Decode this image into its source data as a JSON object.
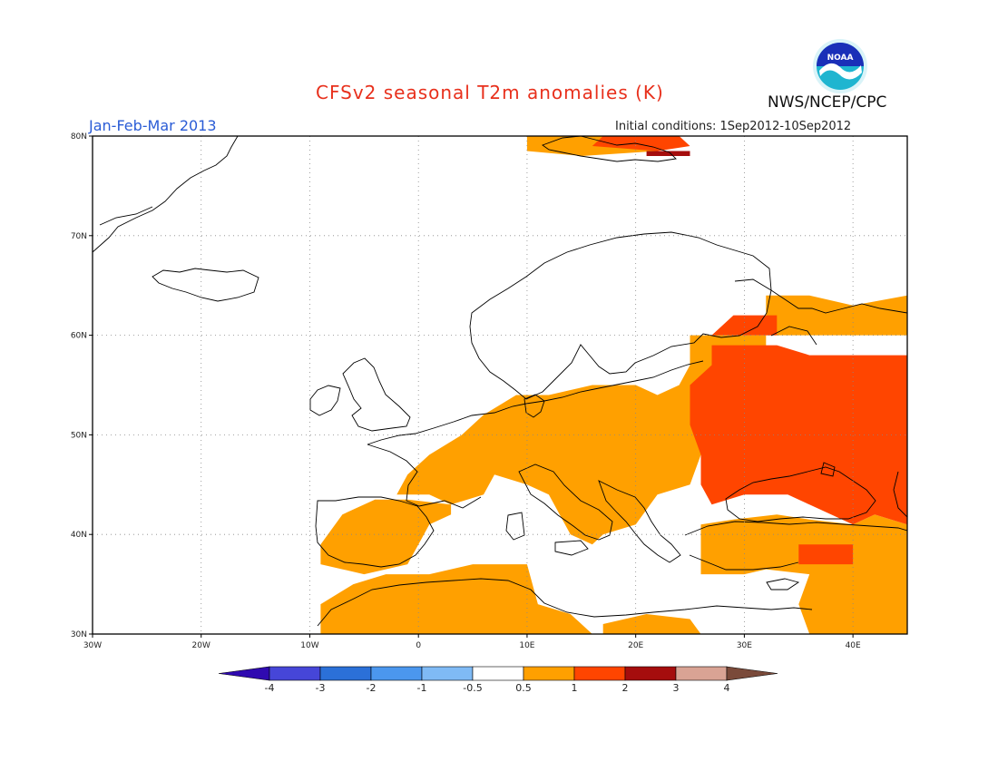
{
  "header": {
    "title": "CFSv2 seasonal T2m anomalies (K)",
    "org": "NWS/NCEP/CPC",
    "period": "Jan-Feb-Mar 2013",
    "initial_conditions": "Initial conditions: 1Sep2012-10Sep2012",
    "logo_text": "NOAA"
  },
  "map": {
    "lon_range": [
      -30,
      45
    ],
    "lat_range": [
      30,
      80
    ],
    "lat_ticks": [
      {
        "value": 80,
        "label": "80N"
      },
      {
        "value": 70,
        "label": "70N"
      },
      {
        "value": 60,
        "label": "60N"
      },
      {
        "value": 50,
        "label": "50N"
      },
      {
        "value": 40,
        "label": "40N"
      },
      {
        "value": 30,
        "label": "30N"
      }
    ],
    "lon_ticks": [
      {
        "value": -30,
        "label": "30W"
      },
      {
        "value": -20,
        "label": "20W"
      },
      {
        "value": -10,
        "label": "10W"
      },
      {
        "value": 0,
        "label": "0"
      },
      {
        "value": 10,
        "label": "10E"
      },
      {
        "value": 20,
        "label": "20E"
      },
      {
        "value": 30,
        "label": "30E"
      },
      {
        "value": 40,
        "label": "40E"
      }
    ],
    "grid": "dotted",
    "anomaly_regions": [
      {
        "level": "0.5-1",
        "name": "southwest-europe-iberia",
        "polygon": [
          [
            -9,
            39
          ],
          [
            -7,
            42
          ],
          [
            -4,
            43.5
          ],
          [
            -1,
            43.5
          ],
          [
            3,
            43
          ],
          [
            3,
            42
          ],
          [
            1,
            41
          ],
          [
            0,
            39
          ],
          [
            -1,
            37
          ],
          [
            -5,
            36
          ],
          [
            -7,
            36.5
          ],
          [
            -9,
            37
          ]
        ]
      },
      {
        "level": "0.5-1",
        "name": "france-central-europe",
        "polygon": [
          [
            -2,
            44
          ],
          [
            -1,
            46
          ],
          [
            1,
            48
          ],
          [
            4,
            50
          ],
          [
            6,
            52
          ],
          [
            9,
            54
          ],
          [
            12,
            54
          ],
          [
            16,
            55
          ],
          [
            20,
            55
          ],
          [
            22,
            54
          ],
          [
            24,
            55
          ],
          [
            25,
            57
          ],
          [
            25,
            60
          ],
          [
            32,
            60
          ],
          [
            32,
            52
          ],
          [
            26,
            48
          ],
          [
            25,
            45
          ],
          [
            22,
            44
          ],
          [
            20,
            41
          ],
          [
            17,
            40
          ],
          [
            16,
            39
          ],
          [
            14,
            40
          ],
          [
            12,
            44
          ],
          [
            10,
            45
          ],
          [
            7,
            46
          ],
          [
            6,
            44
          ],
          [
            3,
            43
          ],
          [
            1,
            44
          ]
        ]
      },
      {
        "level": "0.5-1",
        "name": "north-africa",
        "polygon": [
          [
            -9,
            30
          ],
          [
            -9,
            33
          ],
          [
            -6,
            35
          ],
          [
            -3,
            36
          ],
          [
            1,
            36
          ],
          [
            5,
            37
          ],
          [
            10,
            37
          ],
          [
            11,
            33
          ],
          [
            14,
            32
          ],
          [
            16,
            30
          ]
        ]
      },
      {
        "level": "0.5-1",
        "name": "libya-egypt-coast",
        "polygon": [
          [
            17,
            30
          ],
          [
            17,
            31
          ],
          [
            21,
            32
          ],
          [
            25,
            31.5
          ],
          [
            26,
            30
          ]
        ]
      },
      {
        "level": "0.5-1",
        "name": "turkey-middle-east",
        "polygon": [
          [
            26,
            36
          ],
          [
            26,
            41
          ],
          [
            29,
            41.5
          ],
          [
            33,
            42
          ],
          [
            36,
            41.5
          ],
          [
            40,
            41
          ],
          [
            42,
            42
          ],
          [
            45,
            41
          ],
          [
            45,
            30
          ],
          [
            36,
            30
          ],
          [
            35,
            33
          ],
          [
            36,
            36
          ],
          [
            32,
            36.5
          ],
          [
            30,
            36
          ]
        ]
      },
      {
        "level": "0.5-1",
        "name": "northeast-russia",
        "polygon": [
          [
            32,
            60
          ],
          [
            32,
            64
          ],
          [
            36,
            64
          ],
          [
            40,
            63
          ],
          [
            45,
            64
          ],
          [
            45,
            60
          ]
        ]
      },
      {
        "level": "0.5-1",
        "name": "svalbard-west",
        "polygon": [
          [
            10,
            80
          ],
          [
            10,
            78.5
          ],
          [
            15,
            78
          ],
          [
            22,
            78.5
          ],
          [
            20,
            80
          ]
        ]
      },
      {
        "level": "1-2",
        "name": "western-russia-ukraine",
        "polygon": [
          [
            26,
            45
          ],
          [
            26,
            48
          ],
          [
            25,
            51
          ],
          [
            25,
            55
          ],
          [
            27,
            57
          ],
          [
            27,
            59
          ],
          [
            33,
            59
          ],
          [
            36,
            58
          ],
          [
            45,
            58
          ],
          [
            45,
            41
          ],
          [
            42,
            42
          ],
          [
            40,
            41
          ],
          [
            36,
            43
          ],
          [
            34,
            44
          ],
          [
            30,
            44
          ],
          [
            27,
            43
          ]
        ]
      },
      {
        "level": "1-2",
        "name": "karelia",
        "polygon": [
          [
            27,
            60
          ],
          [
            29,
            62
          ],
          [
            33,
            62
          ],
          [
            33,
            60
          ]
        ]
      },
      {
        "level": "1-2",
        "name": "turkey-east",
        "polygon": [
          [
            35,
            37
          ],
          [
            35,
            39
          ],
          [
            40,
            39
          ],
          [
            40,
            37
          ]
        ]
      },
      {
        "level": "1-2",
        "name": "svalbard-core",
        "polygon": [
          [
            17,
            80
          ],
          [
            16,
            79
          ],
          [
            22,
            78.5
          ],
          [
            25,
            79
          ],
          [
            24,
            80
          ]
        ]
      },
      {
        "level": "2-3",
        "name": "svalbard-east",
        "polygon": [
          [
            21,
            78.5
          ],
          [
            21,
            78
          ],
          [
            25,
            78
          ],
          [
            25,
            78.5
          ]
        ]
      }
    ]
  },
  "legend": {
    "labels": [
      "-4",
      "-3",
      "-2",
      "-1",
      "-0.5",
      "0.5",
      "1",
      "2",
      "3",
      "4"
    ],
    "colors": [
      "#2f0ab0",
      "#4646d8",
      "#2b70d8",
      "#4b97ee",
      "#7fbaf5",
      "#ffffff",
      "#ffa000",
      "#ff4500",
      "#a50d0d",
      "#d9a394",
      "#7a4a3a"
    ]
  },
  "colors": {
    "0.5-1": "#ffa000",
    "1-2": "#ff4500",
    "2-3": "#a50d0d",
    "coast": "#000000"
  }
}
